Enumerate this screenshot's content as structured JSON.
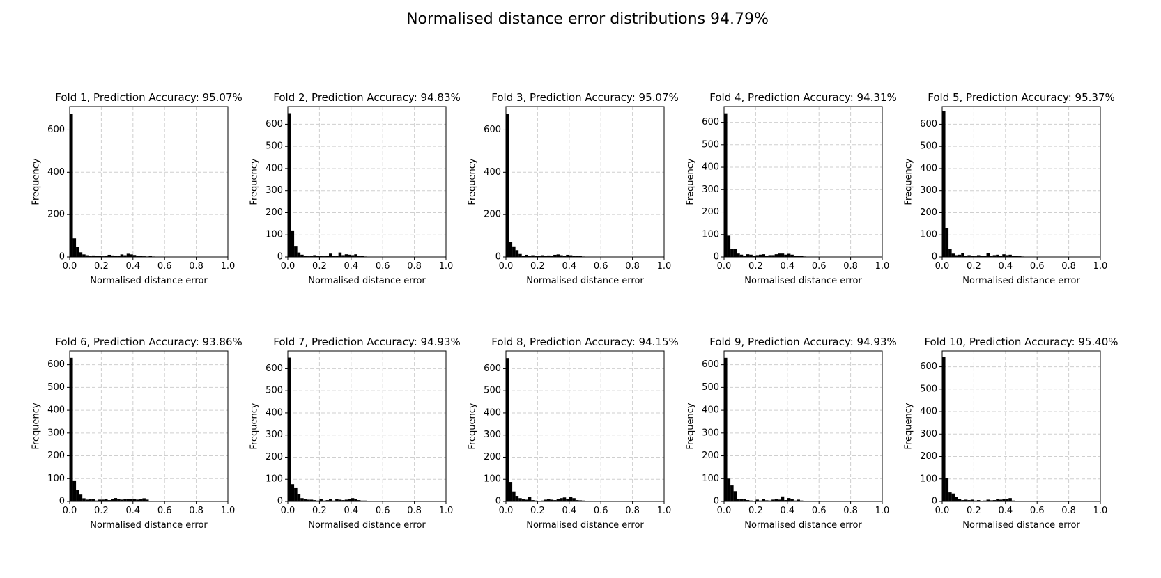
{
  "figure": {
    "title": "Normalised distance error distributions 94.79%"
  },
  "chart_data": [
    {
      "type": "bar",
      "title": "Fold 1, Prediction Accuracy: 95.07%",
      "xlabel": "Normalised distance error",
      "ylabel": "Frequency",
      "xlim": [
        0,
        1
      ],
      "ylim": [
        0,
        710
      ],
      "xticks": [
        0.0,
        0.2,
        0.4,
        0.6,
        0.8,
        1.0
      ],
      "xtick_labels": [
        "0.0",
        "0.2",
        "0.4",
        "0.6",
        "0.8",
        "1.0"
      ],
      "yticks": [
        0,
        200,
        400,
        600
      ],
      "ytick_labels": [
        "0",
        "200",
        "400",
        "600"
      ],
      "grid": true,
      "bin_width": 0.02,
      "x": [
        0.0,
        0.02,
        0.04,
        0.06,
        0.08,
        0.1,
        0.12,
        0.14,
        0.16,
        0.18,
        0.2,
        0.22,
        0.24,
        0.26,
        0.28,
        0.3,
        0.32,
        0.34,
        0.36,
        0.38,
        0.4,
        0.42,
        0.44,
        0.46,
        0.48,
        0.5,
        0.52
      ],
      "values": [
        675,
        88,
        48,
        22,
        12,
        8,
        6,
        7,
        5,
        4,
        3,
        6,
        10,
        7,
        5,
        6,
        12,
        8,
        15,
        12,
        9,
        6,
        4,
        3,
        2,
        4,
        2
      ]
    },
    {
      "type": "bar",
      "title": "Fold 2, Prediction Accuracy: 94.83%",
      "xlabel": "Normalised distance error",
      "ylabel": "Frequency",
      "xlim": [
        0,
        1
      ],
      "ylim": [
        0,
        680
      ],
      "xticks": [
        0.0,
        0.2,
        0.4,
        0.6,
        0.8,
        1.0
      ],
      "xtick_labels": [
        "0.0",
        "0.2",
        "0.4",
        "0.6",
        "0.8",
        "1.0"
      ],
      "yticks": [
        0,
        100,
        200,
        300,
        400,
        500,
        600
      ],
      "ytick_labels": [
        "0",
        "100",
        "200",
        "300",
        "400",
        "500",
        "600"
      ],
      "grid": true,
      "bin_width": 0.02,
      "x": [
        0.0,
        0.02,
        0.04,
        0.06,
        0.08,
        0.1,
        0.12,
        0.14,
        0.16,
        0.18,
        0.2,
        0.22,
        0.24,
        0.26,
        0.28,
        0.3,
        0.32,
        0.34,
        0.36,
        0.38,
        0.4,
        0.42,
        0.44,
        0.46,
        0.48
      ],
      "values": [
        650,
        120,
        50,
        20,
        10,
        4,
        3,
        5,
        8,
        4,
        6,
        3,
        4,
        15,
        5,
        6,
        20,
        8,
        12,
        10,
        8,
        12,
        6,
        4,
        2
      ]
    },
    {
      "type": "bar",
      "title": "Fold 3, Prediction Accuracy: 95.07%",
      "xlabel": "Normalised distance error",
      "ylabel": "Frequency",
      "xlim": [
        0,
        1
      ],
      "ylim": [
        0,
        710
      ],
      "xticks": [
        0.0,
        0.2,
        0.4,
        0.6,
        0.8,
        1.0
      ],
      "xtick_labels": [
        "0.0",
        "0.2",
        "0.4",
        "0.6",
        "0.8",
        "1.0"
      ],
      "yticks": [
        0,
        200,
        400,
        600
      ],
      "ytick_labels": [
        "0",
        "200",
        "400",
        "600"
      ],
      "grid": true,
      "bin_width": 0.02,
      "x": [
        0.0,
        0.02,
        0.04,
        0.06,
        0.08,
        0.1,
        0.12,
        0.14,
        0.16,
        0.18,
        0.2,
        0.22,
        0.24,
        0.26,
        0.28,
        0.3,
        0.32,
        0.34,
        0.36,
        0.38,
        0.4,
        0.42,
        0.44,
        0.46,
        0.48
      ],
      "values": [
        675,
        70,
        50,
        32,
        14,
        6,
        10,
        5,
        8,
        6,
        4,
        8,
        5,
        7,
        6,
        10,
        12,
        8,
        5,
        10,
        8,
        6,
        4,
        6,
        2
      ]
    },
    {
      "type": "bar",
      "title": "Fold 4, Prediction Accuracy: 94.31%",
      "xlabel": "Normalised distance error",
      "ylabel": "Frequency",
      "xlim": [
        0,
        1
      ],
      "ylim": [
        0,
        670
      ],
      "xticks": [
        0.0,
        0.2,
        0.4,
        0.6,
        0.8,
        1.0
      ],
      "xtick_labels": [
        "0.0",
        "0.2",
        "0.4",
        "0.6",
        "0.8",
        "1.0"
      ],
      "yticks": [
        0,
        100,
        200,
        300,
        400,
        500,
        600
      ],
      "ytick_labels": [
        "0",
        "100",
        "200",
        "300",
        "400",
        "500",
        "600"
      ],
      "grid": true,
      "bin_width": 0.02,
      "x": [
        0.0,
        0.02,
        0.04,
        0.06,
        0.08,
        0.1,
        0.12,
        0.14,
        0.16,
        0.18,
        0.2,
        0.22,
        0.24,
        0.26,
        0.28,
        0.3,
        0.32,
        0.34,
        0.36,
        0.38,
        0.4,
        0.42,
        0.44,
        0.46,
        0.48,
        0.5
      ],
      "values": [
        640,
        95,
        35,
        35,
        15,
        10,
        6,
        12,
        10,
        5,
        8,
        10,
        12,
        4,
        8,
        8,
        12,
        15,
        15,
        10,
        14,
        10,
        6,
        4,
        4,
        2
      ]
    },
    {
      "type": "bar",
      "title": "Fold 5, Prediction Accuracy: 95.37%",
      "xlabel": "Normalised distance error",
      "ylabel": "Frequency",
      "xlim": [
        0,
        1
      ],
      "ylim": [
        0,
        680
      ],
      "xticks": [
        0.0,
        0.2,
        0.4,
        0.6,
        0.8,
        1.0
      ],
      "xtick_labels": [
        "0.0",
        "0.2",
        "0.4",
        "0.6",
        "0.8",
        "1.0"
      ],
      "yticks": [
        0,
        100,
        200,
        300,
        400,
        500,
        600
      ],
      "ytick_labels": [
        "0",
        "100",
        "200",
        "300",
        "400",
        "500",
        "600"
      ],
      "grid": true,
      "bin_width": 0.02,
      "x": [
        0.0,
        0.02,
        0.04,
        0.06,
        0.08,
        0.1,
        0.12,
        0.14,
        0.16,
        0.18,
        0.2,
        0.22,
        0.24,
        0.26,
        0.28,
        0.3,
        0.32,
        0.34,
        0.36,
        0.38,
        0.4,
        0.42,
        0.44,
        0.46,
        0.48,
        0.5
      ],
      "values": [
        660,
        130,
        35,
        15,
        8,
        10,
        18,
        5,
        8,
        4,
        3,
        8,
        4,
        6,
        18,
        5,
        8,
        10,
        6,
        12,
        8,
        10,
        4,
        6,
        3,
        2
      ]
    },
    {
      "type": "bar",
      "title": "Fold 6, Prediction Accuracy: 93.86%",
      "xlabel": "Normalised distance error",
      "ylabel": "Frequency",
      "xlim": [
        0,
        1
      ],
      "ylim": [
        0,
        660
      ],
      "xticks": [
        0.0,
        0.2,
        0.4,
        0.6,
        0.8,
        1.0
      ],
      "xtick_labels": [
        "0.0",
        "0.2",
        "0.4",
        "0.6",
        "0.8",
        "1.0"
      ],
      "yticks": [
        0,
        100,
        200,
        300,
        400,
        500,
        600
      ],
      "ytick_labels": [
        "0",
        "100",
        "200",
        "300",
        "400",
        "500",
        "600"
      ],
      "grid": true,
      "bin_width": 0.02,
      "x": [
        0.0,
        0.02,
        0.04,
        0.06,
        0.08,
        0.1,
        0.12,
        0.14,
        0.16,
        0.18,
        0.2,
        0.22,
        0.24,
        0.26,
        0.28,
        0.3,
        0.32,
        0.34,
        0.36,
        0.38,
        0.4,
        0.42,
        0.44,
        0.46,
        0.48
      ],
      "values": [
        630,
        92,
        50,
        30,
        14,
        8,
        10,
        10,
        4,
        8,
        8,
        12,
        6,
        12,
        15,
        10,
        8,
        12,
        12,
        10,
        12,
        8,
        12,
        14,
        8
      ]
    },
    {
      "type": "bar",
      "title": "Fold 7, Prediction Accuracy: 94.93%",
      "xlabel": "Normalised distance error",
      "ylabel": "Frequency",
      "xlim": [
        0,
        1
      ],
      "ylim": [
        0,
        680
      ],
      "xticks": [
        0.0,
        0.2,
        0.4,
        0.6,
        0.8,
        1.0
      ],
      "xtick_labels": [
        "0.0",
        "0.2",
        "0.4",
        "0.6",
        "0.8",
        "1.0"
      ],
      "yticks": [
        0,
        100,
        200,
        300,
        400,
        500,
        600
      ],
      "ytick_labels": [
        "0",
        "100",
        "200",
        "300",
        "400",
        "500",
        "600"
      ],
      "grid": true,
      "bin_width": 0.02,
      "x": [
        0.0,
        0.02,
        0.04,
        0.06,
        0.08,
        0.1,
        0.12,
        0.14,
        0.16,
        0.18,
        0.2,
        0.22,
        0.24,
        0.26,
        0.28,
        0.3,
        0.32,
        0.34,
        0.36,
        0.38,
        0.4,
        0.42,
        0.44,
        0.46,
        0.48
      ],
      "values": [
        650,
        78,
        60,
        32,
        15,
        10,
        8,
        8,
        6,
        4,
        10,
        4,
        6,
        10,
        4,
        10,
        8,
        6,
        8,
        12,
        15,
        10,
        6,
        4,
        4
      ]
    },
    {
      "type": "bar",
      "title": "Fold 8, Prediction Accuracy: 94.15%",
      "xlabel": "Normalised distance error",
      "ylabel": "Frequency",
      "xlim": [
        0,
        1
      ],
      "ylim": [
        0,
        680
      ],
      "xticks": [
        0.0,
        0.2,
        0.4,
        0.6,
        0.8,
        1.0
      ],
      "xtick_labels": [
        "0.0",
        "0.2",
        "0.4",
        "0.6",
        "0.8",
        "1.0"
      ],
      "yticks": [
        0,
        100,
        200,
        300,
        400,
        500,
        600
      ],
      "ytick_labels": [
        "0",
        "100",
        "200",
        "300",
        "400",
        "500",
        "600"
      ],
      "grid": true,
      "bin_width": 0.02,
      "x": [
        0.0,
        0.02,
        0.04,
        0.06,
        0.08,
        0.1,
        0.12,
        0.14,
        0.16,
        0.18,
        0.2,
        0.22,
        0.24,
        0.26,
        0.28,
        0.3,
        0.32,
        0.34,
        0.36,
        0.38,
        0.4,
        0.42,
        0.44,
        0.46,
        0.48,
        0.5
      ],
      "values": [
        648,
        88,
        45,
        25,
        15,
        10,
        8,
        20,
        6,
        4,
        3,
        4,
        8,
        10,
        8,
        6,
        12,
        15,
        18,
        10,
        22,
        15,
        6,
        5,
        4,
        3
      ]
    },
    {
      "type": "bar",
      "title": "Fold 9, Prediction Accuracy: 94.93%",
      "xlabel": "Normalised distance error",
      "ylabel": "Frequency",
      "xlim": [
        0,
        1
      ],
      "ylim": [
        0,
        660
      ],
      "xticks": [
        0.0,
        0.2,
        0.4,
        0.6,
        0.8,
        1.0
      ],
      "xtick_labels": [
        "0.0",
        "0.2",
        "0.4",
        "0.6",
        "0.8",
        "1.0"
      ],
      "yticks": [
        0,
        100,
        200,
        300,
        400,
        500,
        600
      ],
      "ytick_labels": [
        "0",
        "100",
        "200",
        "300",
        "400",
        "500",
        "600"
      ],
      "grid": true,
      "bin_width": 0.02,
      "x": [
        0.0,
        0.02,
        0.04,
        0.06,
        0.08,
        0.1,
        0.12,
        0.14,
        0.16,
        0.18,
        0.2,
        0.22,
        0.24,
        0.26,
        0.28,
        0.3,
        0.32,
        0.34,
        0.36,
        0.38,
        0.4,
        0.42,
        0.44,
        0.46,
        0.48
      ],
      "values": [
        630,
        100,
        70,
        45,
        10,
        12,
        10,
        6,
        4,
        3,
        8,
        4,
        10,
        5,
        4,
        8,
        12,
        8,
        22,
        6,
        15,
        10,
        4,
        8,
        4
      ]
    },
    {
      "type": "bar",
      "title": "Fold 10, Prediction Accuracy: 95.40%",
      "xlabel": "Normalised distance error",
      "ylabel": "Frequency",
      "xlim": [
        0,
        1
      ],
      "ylim": [
        0,
        670
      ],
      "xticks": [
        0.0,
        0.2,
        0.4,
        0.6,
        0.8,
        1.0
      ],
      "xtick_labels": [
        "0.0",
        "0.2",
        "0.4",
        "0.6",
        "0.8",
        "1.0"
      ],
      "yticks": [
        0,
        100,
        200,
        300,
        400,
        500,
        600
      ],
      "ytick_labels": [
        "0",
        "100",
        "200",
        "300",
        "400",
        "500",
        "600"
      ],
      "grid": true,
      "bin_width": 0.02,
      "x": [
        0.0,
        0.02,
        0.04,
        0.06,
        0.08,
        0.1,
        0.12,
        0.14,
        0.16,
        0.18,
        0.2,
        0.22,
        0.24,
        0.26,
        0.28,
        0.3,
        0.32,
        0.34,
        0.36,
        0.38,
        0.4,
        0.42,
        0.44,
        0.46
      ],
      "values": [
        645,
        105,
        40,
        35,
        20,
        10,
        6,
        8,
        6,
        8,
        4,
        6,
        3,
        4,
        8,
        5,
        6,
        10,
        8,
        10,
        12,
        15,
        4,
        3
      ]
    }
  ]
}
